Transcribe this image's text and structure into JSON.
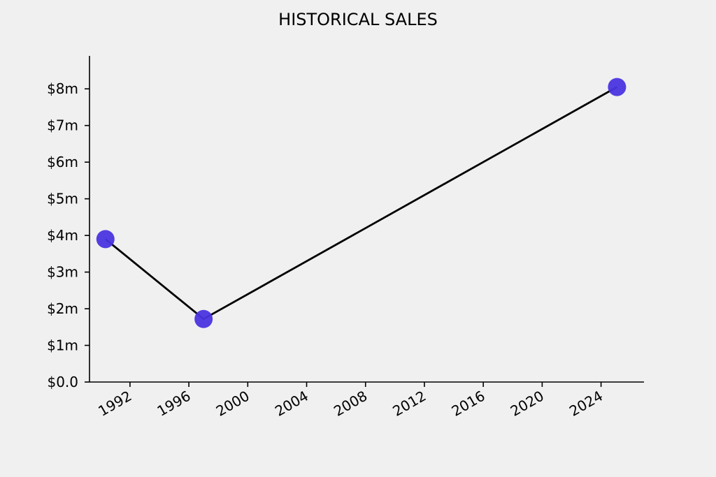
{
  "chart_data": {
    "type": "line",
    "title": "HISTORICAL SALES",
    "xlabel": "",
    "ylabel": "",
    "x_axis": {
      "type": "date",
      "ticks": [
        "1992",
        "1996",
        "2000",
        "2004",
        "2008",
        "2012",
        "2016",
        "2020",
        "2024"
      ],
      "range": [
        "1989-04",
        "2026-12"
      ]
    },
    "y_axis": {
      "ticks": [
        {
          "value": 0,
          "label": "$0.0"
        },
        {
          "value": 1,
          "label": "$1m"
        },
        {
          "value": 2,
          "label": "$2m"
        },
        {
          "value": 3,
          "label": "$3m"
        },
        {
          "value": 4,
          "label": "$4m"
        },
        {
          "value": 5,
          "label": "$5m"
        },
        {
          "value": 6,
          "label": "$6m"
        },
        {
          "value": 7,
          "label": "$7m"
        },
        {
          "value": 8,
          "label": "$8m"
        }
      ],
      "range": [
        0,
        8.9
      ],
      "unit": "$ millions"
    },
    "grid": false,
    "legend": "none",
    "series": [
      {
        "points": [
          {
            "x": "1990-05",
            "y": 3.9
          },
          {
            "x": "1997-01",
            "y": 1.72
          },
          {
            "x": "2025-02",
            "y": 8.05
          }
        ]
      }
    ],
    "colors": {
      "marker": "#4a34df",
      "line": "#000000",
      "background": "#f0f0f0"
    }
  }
}
